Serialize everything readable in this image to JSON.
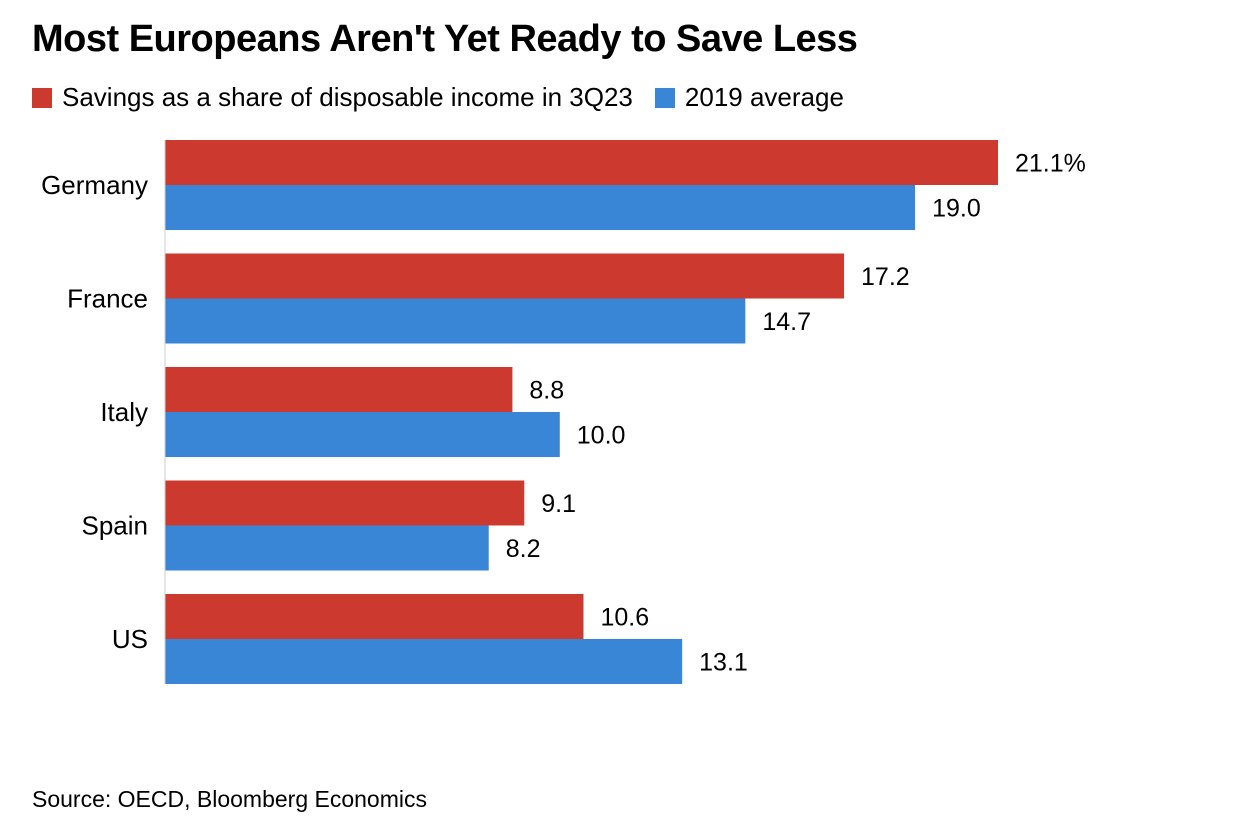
{
  "title": "Most Europeans Aren't Yet Ready to Save Less",
  "legend": [
    {
      "label": "Savings as a share of disposable income in 3Q23",
      "color": "#cc3a2f"
    },
    {
      "label": "2019 average",
      "color": "#3a86d6"
    }
  ],
  "source": "Source: OECD, Bloomberg Economics",
  "chart_data": {
    "type": "bar",
    "orientation": "horizontal",
    "categories": [
      "Germany",
      "France",
      "Italy",
      "Spain",
      "US"
    ],
    "series": [
      {
        "name": "Savings as a share of disposable income in 3Q23",
        "color": "#cc3a2f",
        "values": [
          21.1,
          17.2,
          8.8,
          9.1,
          10.6
        ],
        "labels": [
          "21.1%",
          "17.2",
          "8.8",
          "9.1",
          "10.6"
        ]
      },
      {
        "name": "2019 average",
        "color": "#3a86d6",
        "values": [
          19.0,
          14.7,
          10.0,
          8.2,
          13.1
        ],
        "labels": [
          "19.0",
          "14.7",
          "10.0",
          "8.2",
          "13.1"
        ]
      }
    ],
    "xlim": [
      0,
      21.1
    ],
    "grid": false,
    "legend_position": "top-left"
  }
}
